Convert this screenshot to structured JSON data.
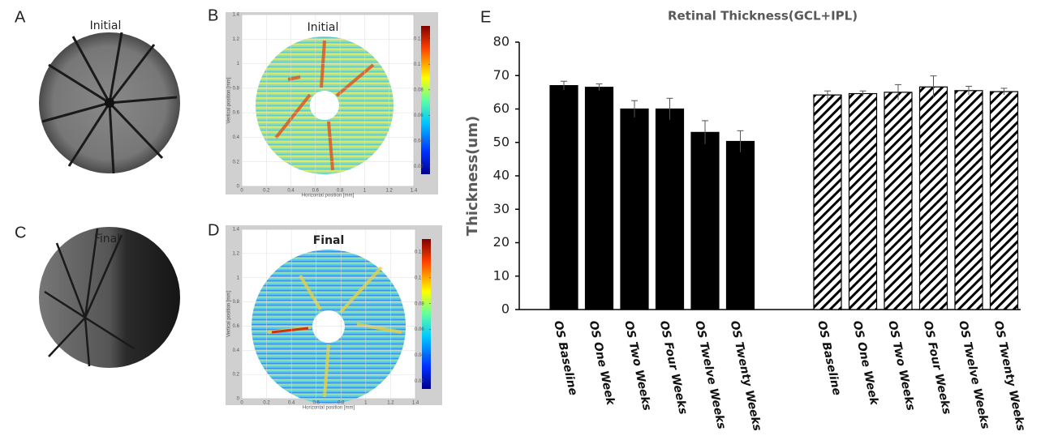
{
  "panel_labels": [
    "A",
    "B",
    "C",
    "D",
    "E"
  ],
  "fundus": [
    {
      "title": "Initial"
    },
    {
      "title": "Final"
    }
  ],
  "heatmaps": [
    {
      "title": "Initial",
      "x_label": "Horizontal position [mm]",
      "y_label": "Vertical position [mm]",
      "xlim": [
        0,
        1.4
      ],
      "xticks": [
        0,
        0.2,
        0.4,
        0.6,
        0.8,
        1,
        1.2,
        1.4
      ],
      "ylim": [
        0,
        1.4
      ],
      "yticks": [
        0,
        0.2,
        0.4,
        0.6,
        0.8,
        1,
        1.2,
        1.4
      ],
      "colorbar_lim": [
        0.014,
        0.13
      ],
      "colorbar_ticks": [
        0.02,
        0.04,
        0.06,
        0.08,
        0.1,
        0.12
      ]
    },
    {
      "title": "Final",
      "x_label": "Horizontal position [mm]",
      "y_label": "Vertical position [mm]",
      "xlim": [
        0,
        1.4
      ],
      "xticks": [
        0,
        0.2,
        0.4,
        0.6,
        0.8,
        1,
        1.2,
        1.4
      ],
      "ylim": [
        0,
        1.4
      ],
      "yticks": [
        0,
        0.2,
        0.4,
        0.6,
        0.8,
        1,
        1.2,
        1.4
      ],
      "colorbar_lim": [
        0.014,
        0.13
      ],
      "colorbar_ticks": [
        0.02,
        0.04,
        0.06,
        0.08,
        0.1,
        0.12
      ]
    }
  ],
  "chart_data": {
    "type": "bar",
    "title": "Retinal Thickness(GCL+IPL)",
    "y_label": "Thickness(um)",
    "ylim": [
      0,
      80
    ],
    "yticks": [
      0,
      10,
      20,
      30,
      40,
      50,
      60,
      70,
      80
    ],
    "groups": [
      {
        "fill": "#000000",
        "hatch": false,
        "categories": [
          "OS Baseline",
          "OS One Week",
          "OS Two Weeks",
          "OS Four Weeks",
          "OS Twelve Weeks",
          "OS Twenty Weeks"
        ],
        "values": [
          67,
          66.5,
          60,
          60,
          53,
          50.3
        ],
        "errors": [
          1.3,
          1,
          2.5,
          3.2,
          3.5,
          3.2
        ]
      },
      {
        "fill": "#000000",
        "hatch": true,
        "categories": [
          "OS Baseline",
          "OS One Week",
          "OS Two Weeks",
          "OS Four Weeks",
          "OS Twelve Weeks",
          "OS Twenty Weeks"
        ],
        "values": [
          64.2,
          64.6,
          65,
          66.6,
          65.5,
          65.2
        ],
        "errors": [
          1.2,
          0.8,
          2.3,
          3.3,
          1.3,
          1
        ]
      }
    ]
  }
}
